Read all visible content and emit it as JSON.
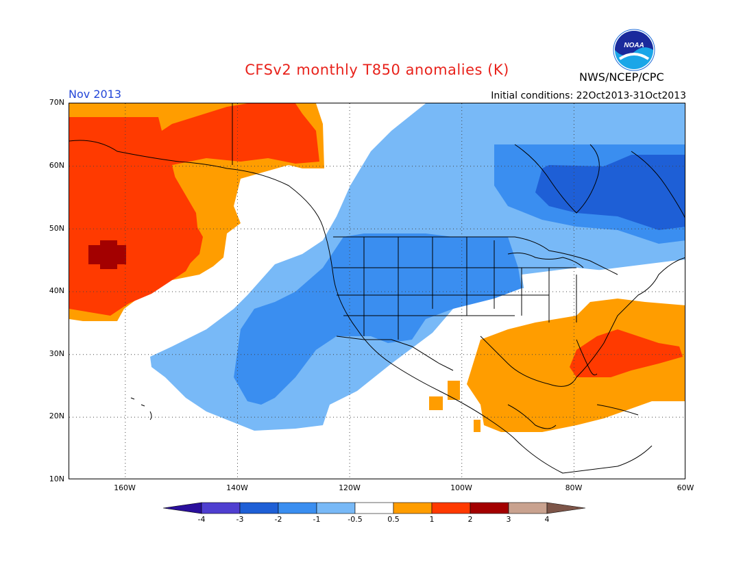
{
  "title": "CFSv2 monthly T850 anomalies (K)",
  "agency": "NWS/NCEP/CPC",
  "logo_text": "NOAA",
  "month_label": "Nov 2013",
  "initial_conditions": "Initial conditions: 22Oct2013-31Oct2013",
  "map": {
    "variable": "T850 anomaly",
    "units": "K",
    "lon_range": [
      -170,
      -60
    ],
    "lat_range": [
      10,
      70
    ],
    "grid_dotted": true,
    "lat_labels": [
      "70N",
      "60N",
      "50N",
      "40N",
      "30N",
      "20N",
      "10N"
    ],
    "lon_labels": [
      "160W",
      "140W",
      "120W",
      "100W",
      "80W",
      "60W"
    ],
    "anomaly_regions": [
      {
        "name": "Gulf of Alaska / North Pacific warm",
        "range": "0.5 to 3",
        "center_lat": 46,
        "center_lon": -164,
        "peak": "2 to 3"
      },
      {
        "name": "Northwest Canada warm",
        "range": "0.5 to 2",
        "center_lat": 65,
        "center_lon": -140
      },
      {
        "name": "Western US / Canada cold",
        "range": "-2 to -0.5",
        "center_lat": 45,
        "center_lon": -112
      },
      {
        "name": "Subtropical Pacific cold",
        "range": "-2 to -0.5",
        "center_lat": 28,
        "center_lon": -130
      },
      {
        "name": "Eastern Canada cold",
        "range": "-3 to -0.5",
        "center_lat": 58,
        "center_lon": -75
      },
      {
        "name": "Gulf of Mexico / Southeast US warm",
        "range": "0.5 to 1",
        "center_lat": 27,
        "center_lon": -88
      },
      {
        "name": "Western Atlantic warm",
        "range": "0.5 to 2",
        "center_lat": 31,
        "center_lon": -70
      }
    ]
  },
  "colorbar": {
    "labels": [
      "-4",
      "-3",
      "-2",
      "-1",
      "-0.5",
      "0.5",
      "1",
      "2",
      "3",
      "4"
    ],
    "colors": [
      "#2a0f9c",
      "#4f3fd0",
      "#1e5fd6",
      "#3a8ef0",
      "#78b9f7",
      "#ffffff",
      "#ff9d00",
      "#ff3a00",
      "#a30000",
      "#c9a28f",
      "#7d5548"
    ]
  }
}
